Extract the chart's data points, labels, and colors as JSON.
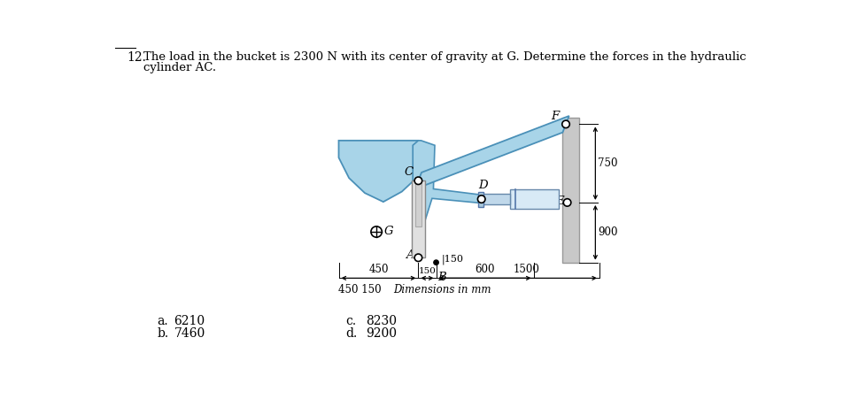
{
  "light_blue": "#a8d4e8",
  "blue_stroke": "#4a90b8",
  "gray_fill": "#c8c8c8",
  "gray_stroke": "#999999",
  "cyl_light": "#d8eaf6",
  "cyl_dark": "#8ab0c8",
  "white": "#ffffff",
  "black": "#000000",
  "bg": "#ffffff",
  "title_line1": "The load in the bucket is 2300 N with its center of gravity at G. Determine the forces in the hydraulic",
  "title_line2": "cylinder AC.",
  "problem_num": "12.",
  "ans_a_label": "a.",
  "ans_a_val": "6210",
  "ans_b_label": "b.",
  "ans_b_val": "7460",
  "ans_c_label": "c.",
  "ans_c_val": "8230",
  "ans_d_label": "d.",
  "ans_d_val": "9200",
  "dim_450": "450",
  "dim_150": "150",
  "dim_600": "600",
  "dim_1500": "1500",
  "dim_750": "750",
  "dim_900": "900",
  "dim_label_150_near_B": "150",
  "dim_units": "Dimensions in mm"
}
